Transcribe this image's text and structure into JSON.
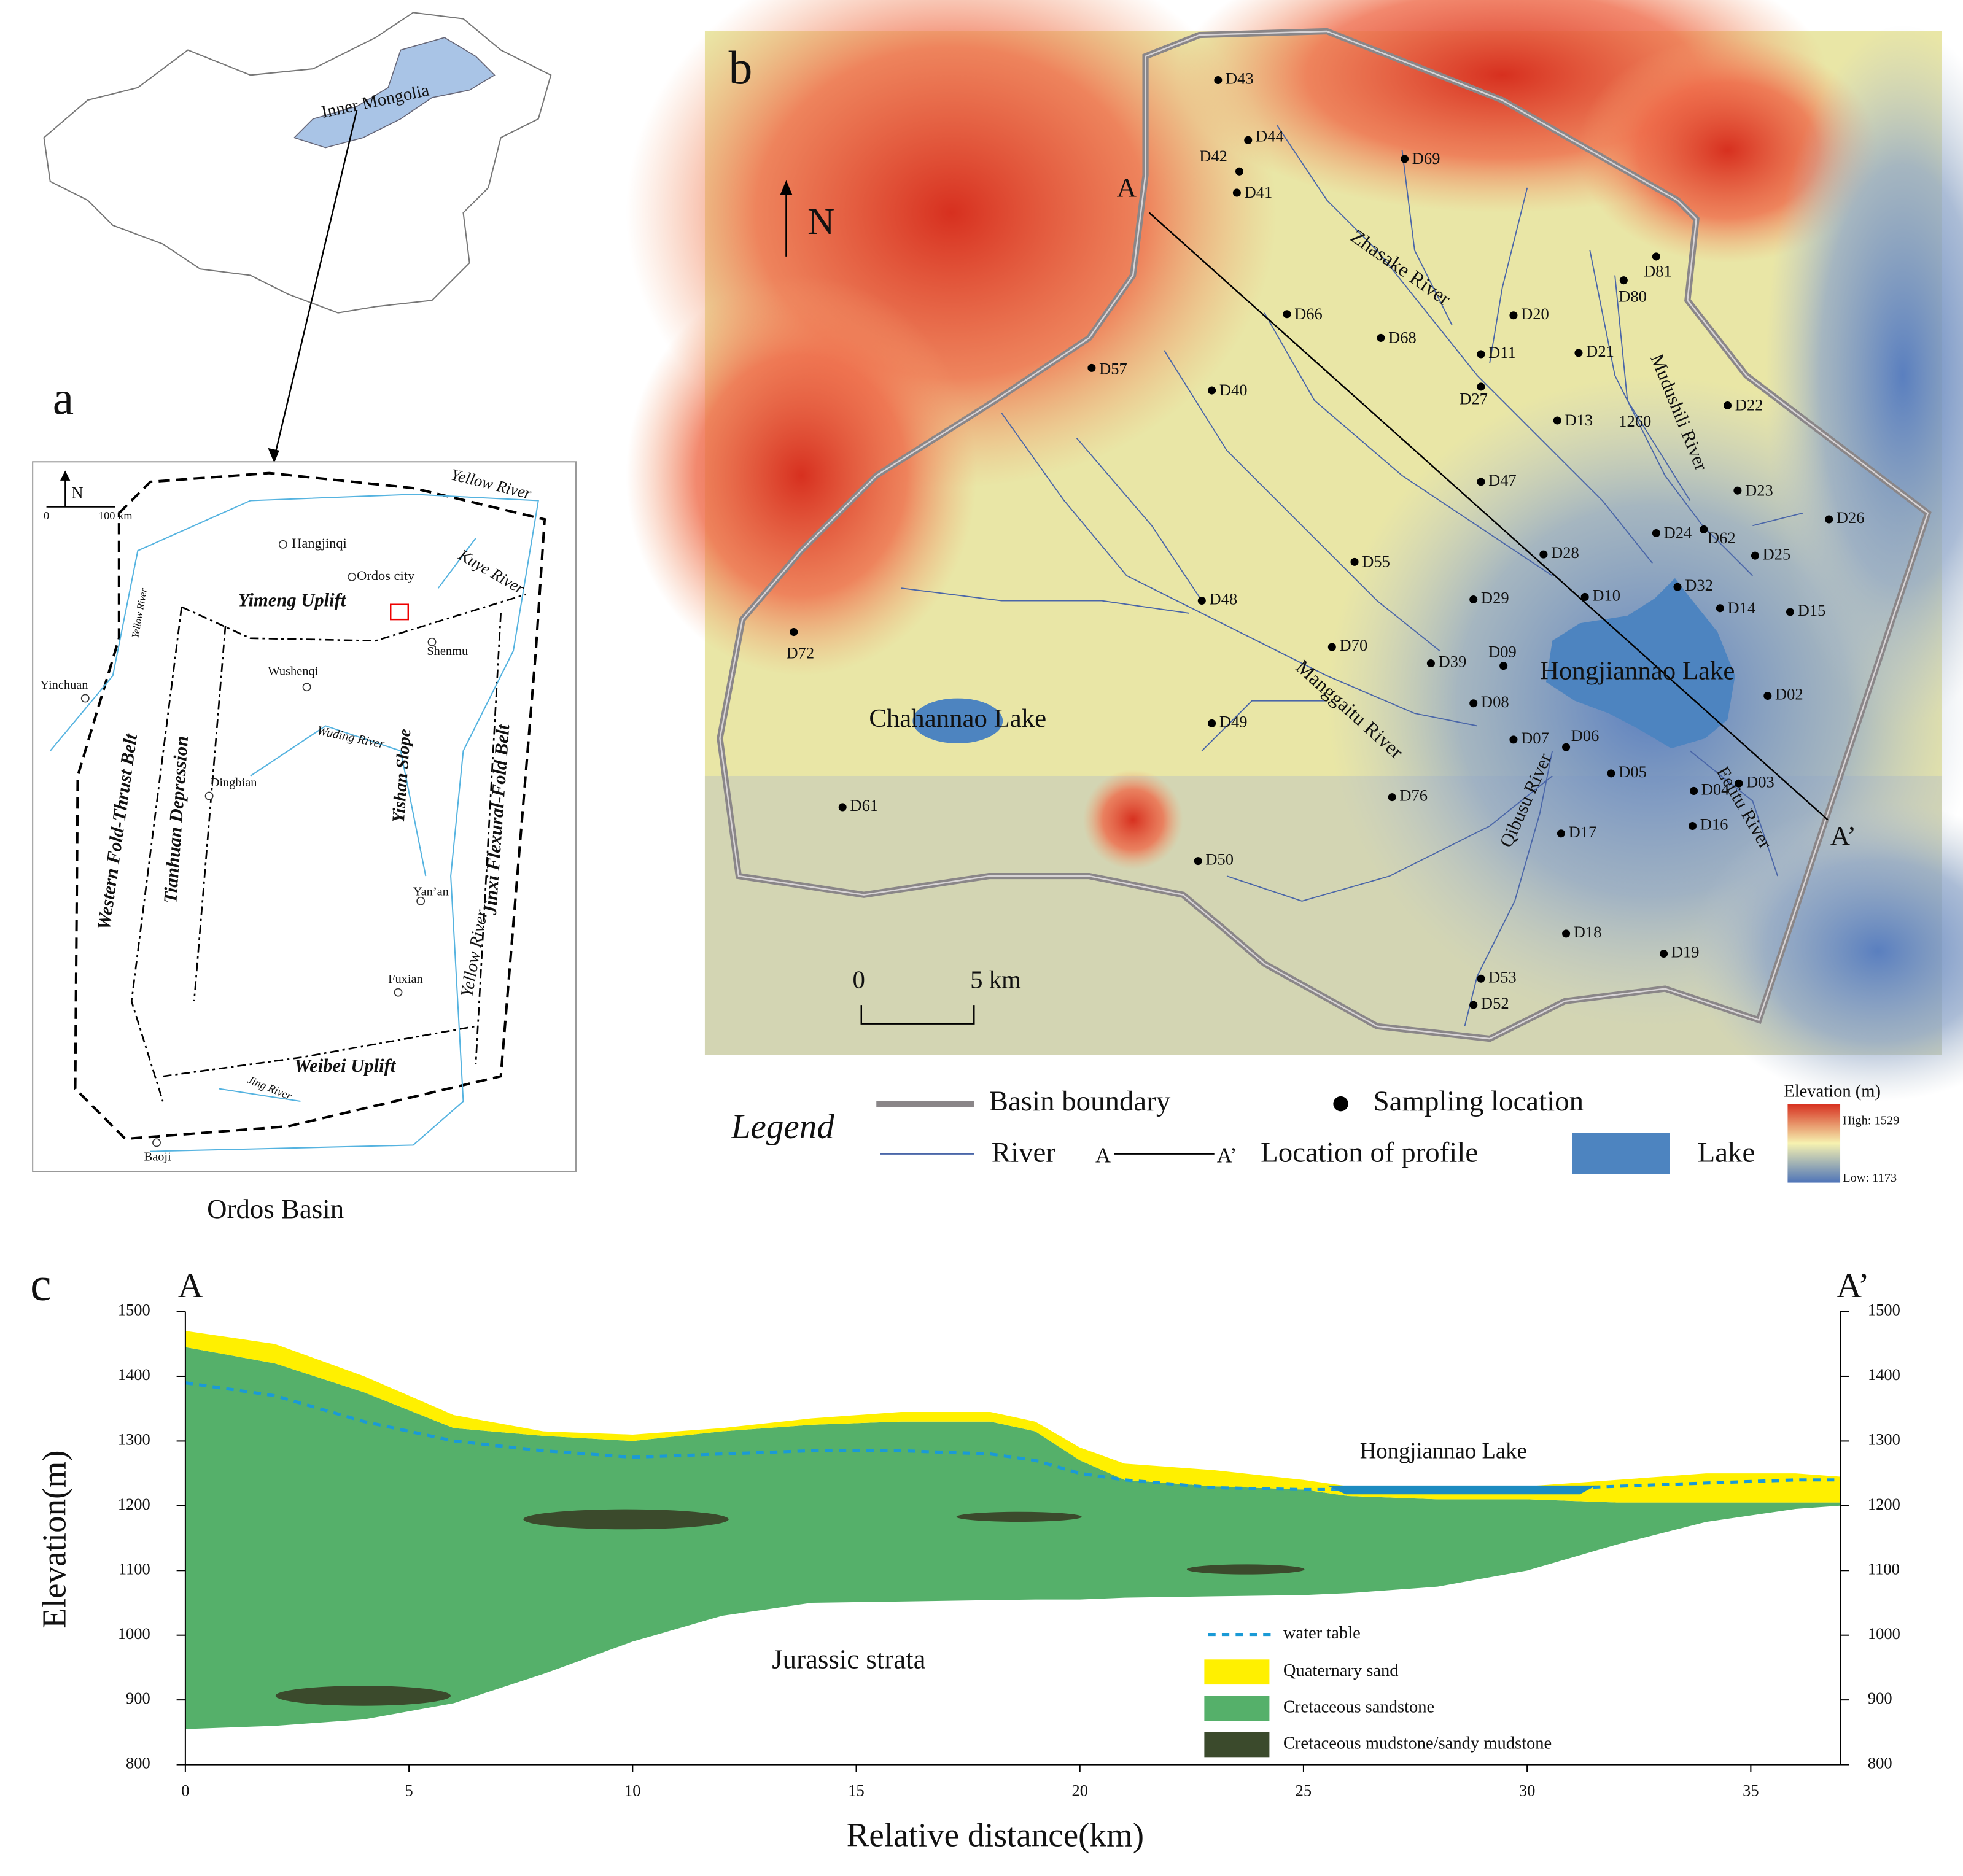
{
  "panel_a": {
    "label": "a",
    "caption": "Ordos Basin",
    "north": "N",
    "scale": {
      "zero": "0",
      "length": "100 km"
    },
    "labels": [
      "Inner Mongolia",
      "Yellow River",
      "Hangjinqi",
      "Ordos city",
      "Kuye River",
      "Yimeng Uplift",
      "Shenmu",
      "Yinchuan",
      "Wushenqi",
      "Wuding River",
      "Yellow River",
      "Western Fold-Thrust Belt",
      "Tianhuan Depression",
      "Dingbian",
      "Yishan Slope",
      "Jinxi Flexural-Fold Belt",
      "Yan’an",
      "Fuxian",
      "Yellow River",
      "Weibei Uplift",
      "Jing River",
      "Baoji"
    ]
  },
  "panel_b": {
    "label": "b",
    "north": "N",
    "profile_start": "A",
    "profile_end": "A’",
    "scale": {
      "zero": "0",
      "length": "5 km"
    },
    "map_labels": [
      "Zhasake River",
      "Mudushili River",
      "Manggaitu River",
      "Qibusu River",
      "Eelitu River",
      "Chahannao Lake",
      "Hongjiannao Lake",
      "1260"
    ],
    "samples": [
      "D43",
      "D44",
      "D42",
      "D41",
      "D69",
      "D81",
      "D80",
      "D66",
      "D20",
      "D68",
      "D11",
      "D21",
      "D57",
      "D40",
      "D27",
      "D22",
      "D13",
      "D47",
      "D23",
      "D26",
      "D24",
      "D62",
      "D25",
      "D28",
      "D55",
      "D32",
      "D10",
      "D29",
      "D48",
      "D14",
      "D15",
      "D72",
      "D70",
      "D39",
      "D09",
      "D08",
      "D02",
      "D49",
      "D07",
      "D06",
      "D05",
      "D04",
      "D03",
      "D76",
      "D61",
      "D16",
      "D17",
      "D50",
      "D18",
      "D19",
      "D53",
      "D52"
    ]
  },
  "legend": {
    "title": "Legend",
    "basin_boundary": "Basin boundary",
    "sampling_location": "Sampling location",
    "river": "River",
    "profile_a": "A",
    "profile_b": "A’",
    "profile": "Location of profile",
    "lake": "Lake",
    "elevation_title": "Elevation (m)",
    "elevation_high": "High: 1529",
    "elevation_low": "Low: 1173"
  },
  "chart_data": {
    "type": "cross-section",
    "label": "c",
    "start_label": "A",
    "end_label": "A’",
    "xlabel": "Relative distance(km)",
    "ylabel": "Elevation(m)",
    "annotations": [
      "Hongjiannao Lake",
      "Jurassic strata"
    ],
    "xlim": [
      0,
      37
    ],
    "xticks": [
      0,
      5,
      10,
      15,
      20,
      25,
      30,
      35
    ],
    "ylim": [
      800,
      1500
    ],
    "yticks": [
      800,
      900,
      1000,
      1100,
      1200,
      1300,
      1400,
      1500
    ],
    "y2lim": [
      800,
      1500
    ],
    "y2ticks": [
      800,
      900,
      1000,
      1100,
      1200,
      1300,
      1400,
      1500
    ],
    "x": [
      0,
      2,
      4,
      6,
      8,
      10,
      12,
      14,
      16,
      18,
      19,
      20,
      21,
      23,
      25,
      26,
      28,
      30,
      32,
      34,
      36,
      37
    ],
    "series": [
      {
        "name": "water table",
        "color": "#1a9ad6",
        "values": [
          1390,
          1370,
          1330,
          1300,
          1285,
          1275,
          1280,
          1285,
          1285,
          1280,
          1270,
          1250,
          1240,
          1228,
          1225,
          1225,
          1225,
          1225,
          1230,
          1235,
          1240,
          1240
        ]
      },
      {
        "name": "Quaternary sand",
        "color": "#fff000",
        "values": [
          1470,
          1450,
          1400,
          1340,
          1315,
          1310,
          1320,
          1335,
          1345,
          1345,
          1330,
          1290,
          1265,
          1255,
          1240,
          1230,
          1230,
          1230,
          1240,
          1250,
          1250,
          1245
        ]
      },
      {
        "name": "Cretaceous sandstone",
        "color": "#55b06a",
        "values": [
          1445,
          1420,
          1375,
          1320,
          1308,
          1300,
          1315,
          1325,
          1330,
          1330,
          1315,
          1270,
          1240,
          1230,
          1225,
          1215,
          1210,
          1210,
          1205,
          1205,
          1205,
          1205
        ],
        "base": [
          855,
          860,
          870,
          895,
          940,
          990,
          1030,
          1050,
          1052,
          1054,
          1055,
          1055,
          1058,
          1060,
          1062,
          1065,
          1075,
          1100,
          1140,
          1175,
          1195,
          1200
        ]
      },
      {
        "name": "Cretaceous mudstone/sandy mudstone",
        "color": "#3b4a2c"
      }
    ]
  }
}
